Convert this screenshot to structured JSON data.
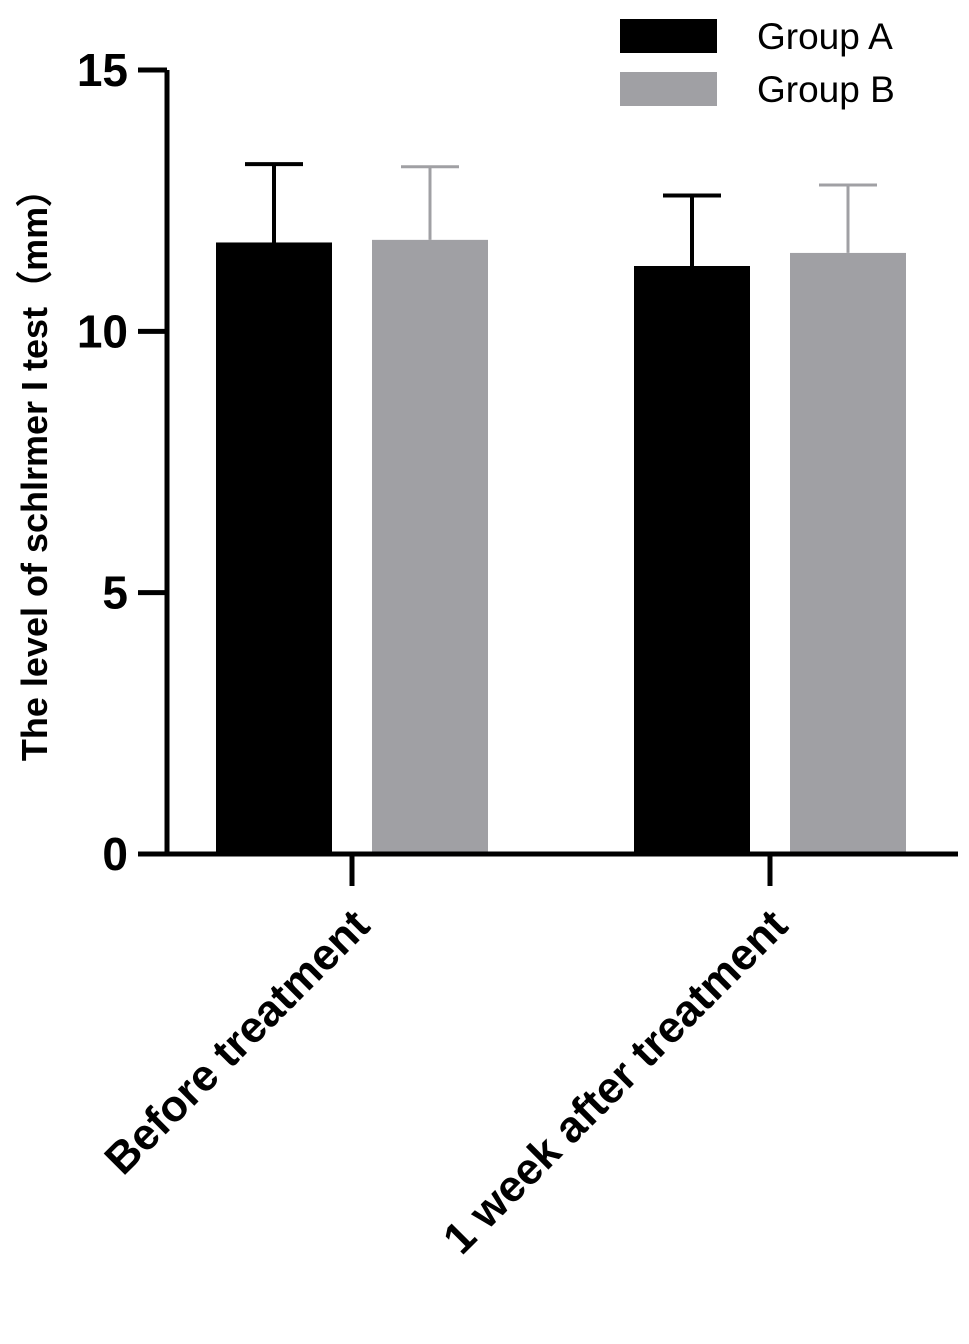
{
  "chart_data": {
    "type": "bar",
    "categories": [
      "Before treatment",
      "1 week after treatment"
    ],
    "series": [
      {
        "name": "Group A",
        "values": [
          11.7,
          11.25
        ],
        "error": [
          1.5,
          1.35
        ],
        "color": "#000000"
      },
      {
        "name": "Group B",
        "values": [
          11.75,
          11.5
        ],
        "error": [
          1.4,
          1.3
        ],
        "color": "#a0a0a4"
      }
    ],
    "ylabel": "The level of schlrmer I test（mm）",
    "xlabel": "",
    "ylim": [
      0,
      15
    ],
    "yticks": [
      0,
      5,
      10,
      15
    ],
    "legend_position": "top-right",
    "grid": false
  }
}
